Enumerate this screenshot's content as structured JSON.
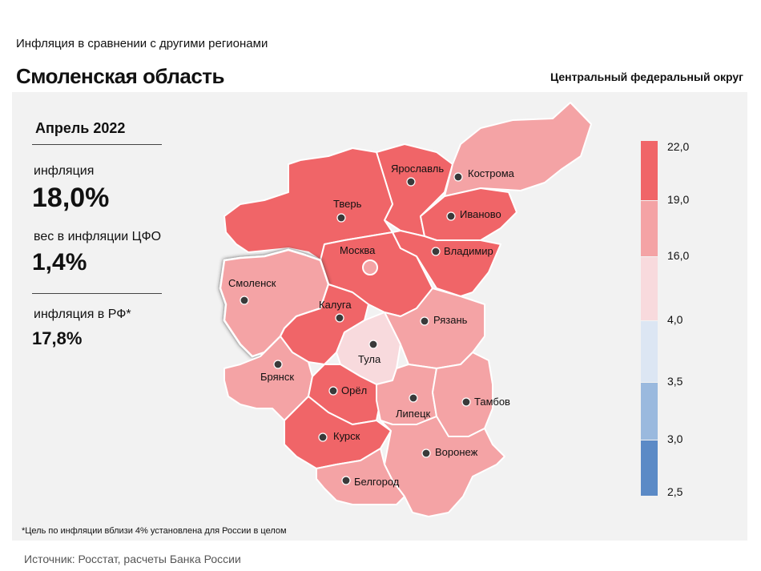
{
  "header": {
    "subtitle": "Инфляция  в сравнении  с другими  регионами",
    "title": "Смоленская область",
    "district": "Центральный федеральный округ"
  },
  "stats": {
    "period": "Апрель 2022",
    "inflation_label": "инфляция",
    "inflation_value": "18,0%",
    "weight_label": "вес в инфляции  ЦФО",
    "weight_value": "1,4%",
    "rf_label": "инфляция  в РФ*",
    "rf_value": "17,8%"
  },
  "legend": {
    "ticks": [
      "22,0",
      "19,0",
      "16,0",
      "4,0",
      "3,5",
      "3,0",
      "2,5"
    ],
    "colors": [
      "#f06568",
      "#f4a3a5",
      "#f8dadd",
      "#dce6f3",
      "#9ab9de",
      "#5b8ac6"
    ]
  },
  "regions": [
    {
      "name": "Ярославль",
      "color": "#f06568"
    },
    {
      "name": "Кострома",
      "color": "#f4a3a5"
    },
    {
      "name": "Тверь",
      "color": "#f06568"
    },
    {
      "name": "Иваново",
      "color": "#f06568"
    },
    {
      "name": "Москва",
      "color": "#f06568"
    },
    {
      "name": "Владимир",
      "color": "#f06568"
    },
    {
      "name": "Смоленск",
      "color": "#f4a3a5"
    },
    {
      "name": "Калуга",
      "color": "#f06568"
    },
    {
      "name": "Рязань",
      "color": "#f4a3a5"
    },
    {
      "name": "Тула",
      "color": "#f8dadd"
    },
    {
      "name": "Брянск",
      "color": "#f4a3a5"
    },
    {
      "name": "Орёл",
      "color": "#f06568"
    },
    {
      "name": "Липецк",
      "color": "#f4a3a5"
    },
    {
      "name": "Тамбов",
      "color": "#f4a3a5"
    },
    {
      "name": "Курск",
      "color": "#f06568"
    },
    {
      "name": "Воронеж",
      "color": "#f4a3a5"
    },
    {
      "name": "Белгород",
      "color": "#f4a3a5"
    }
  ],
  "footer": {
    "note": "*Цель по инфляции вблизи 4% установлена для России в целом",
    "source": "Источник: Росстат, расчеты Банка России"
  }
}
